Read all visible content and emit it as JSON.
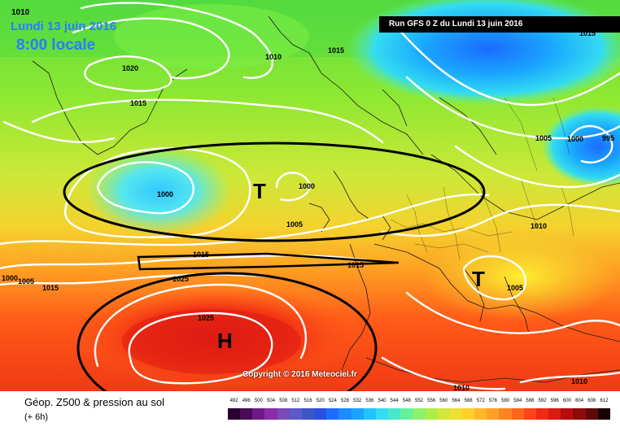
{
  "header": {
    "date_label": "Lundi 13 juin 2016",
    "time_label": "8:00 locale",
    "run_label": "Run GFS 0 Z du Lundi 13 juin 2016"
  },
  "copyright": "Copyright © 2016 Meteociel.fr",
  "footer": {
    "title": "Géop. Z500 & pression au sol",
    "subtitle": "(+ 6h)"
  },
  "colorscale": {
    "ticks": [
      "492",
      "496",
      "500",
      "504",
      "508",
      "512",
      "516",
      "520",
      "524",
      "528",
      "532",
      "536",
      "540",
      "544",
      "548",
      "552",
      "556",
      "560",
      "564",
      "568",
      "572",
      "576",
      "580",
      "584",
      "588",
      "592",
      "596",
      "600",
      "604",
      "608",
      "612"
    ],
    "colors": [
      "#2b0030",
      "#4a0a55",
      "#6e1a86",
      "#8a2ca6",
      "#7a4ab8",
      "#5a5ac8",
      "#3c56c8",
      "#2a4ee0",
      "#1e6cff",
      "#1a8cff",
      "#1aa6ff",
      "#22c4ff",
      "#33dcf0",
      "#45e8c8",
      "#66f09a",
      "#8cf070",
      "#b0ec48",
      "#d2e838",
      "#eee030",
      "#ffd028",
      "#ffb828",
      "#ffa024",
      "#ff8420",
      "#ff661c",
      "#ff4418",
      "#f02a14",
      "#d81a12",
      "#b80c10",
      "#900a0c",
      "#5e0a0a",
      "#1a0000"
    ]
  },
  "pressure_systems": [
    {
      "id": "low-atlantic",
      "letter": "T"
    },
    {
      "id": "high-azores",
      "letter": "H"
    },
    {
      "id": "low-balkans",
      "letter": "T"
    }
  ],
  "isobar_labels": [
    "1010",
    "1020",
    "1015",
    "1010",
    "1015",
    "1015",
    "1005",
    "1000",
    "995",
    "1000",
    "1000",
    "1005",
    "1010",
    "1015",
    "1015",
    "1005",
    "1025",
    "1025",
    "1010",
    "1010",
    "1000",
    "1005",
    "1015"
  ]
}
